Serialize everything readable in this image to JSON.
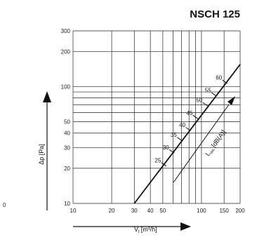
{
  "chart_data": {
    "type": "line",
    "title": "NSCH 125",
    "xlabel": "V",
    "xlabel_sub": "t",
    "xlabel_unit": "[m³/h]",
    "ylabel": "Δp [Pa]",
    "xscale": "log",
    "yscale": "log",
    "xlim": [
      10,
      200
    ],
    "ylim": [
      10,
      300
    ],
    "grid": true,
    "x_ticks": [
      10,
      20,
      30,
      40,
      50,
      100,
      150,
      200
    ],
    "x_tick_labels": [
      "10",
      "20",
      "30",
      "40",
      "50",
      "100",
      "150",
      "200"
    ],
    "x_grid": [
      10,
      20,
      30,
      40,
      50,
      60,
      70,
      80,
      90,
      100,
      150,
      200
    ],
    "y_ticks": [
      10,
      20,
      30,
      40,
      50,
      100,
      200,
      300
    ],
    "y_tick_labels": [
      "10",
      "20",
      "30",
      "40",
      "50",
      "100",
      "200",
      "300"
    ],
    "y_grid": [
      10,
      20,
      30,
      40,
      50,
      60,
      70,
      80,
      90,
      100,
      200,
      300
    ],
    "stray_label": "0",
    "series": [
      {
        "points": [
          [
            30,
            10
          ],
          [
            200,
            155
          ]
        ],
        "color": "#111111"
      }
    ],
    "sound_level": {
      "label": "L",
      "label_sub": "WA",
      "label_unit": "[dB(A)]",
      "markers": [
        {
          "label": "25",
          "x": 50.9,
          "y": 21.6
        },
        {
          "label": "30",
          "x": 58.8,
          "y": 27.9
        },
        {
          "label": "35",
          "x": 67.6,
          "y": 35.6
        },
        {
          "label": "40",
          "x": 78.9,
          "y": 43.3
        },
        {
          "label": "45",
          "x": 89.7,
          "y": 54.9
        },
        {
          "label": "50",
          "x": 106.8,
          "y": 70.6
        },
        {
          "label": "55",
          "x": 125.2,
          "y": 85.8
        },
        {
          "label": "60",
          "x": 152.0,
          "y": 110.0
        }
      ]
    }
  }
}
